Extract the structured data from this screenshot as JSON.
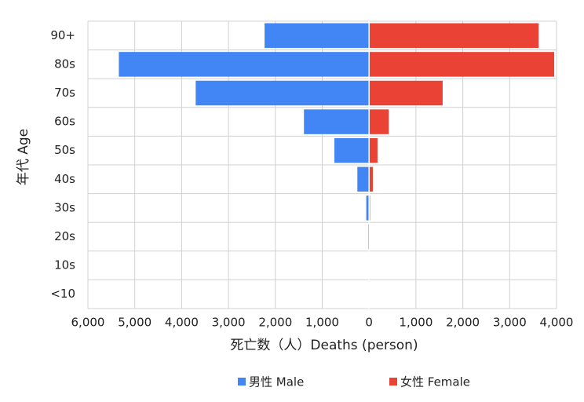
{
  "chart_data": {
    "type": "pyramid",
    "categories": [
      "90+",
      "80s",
      "70s",
      "60s",
      "50s",
      "40s",
      "30s",
      "20s",
      "10s",
      "<10"
    ],
    "series": [
      {
        "name": "男性 Male",
        "color": "#4285f4",
        "values": [
          -2230,
          -5340,
          -3700,
          -1390,
          -740,
          -250,
          -60,
          -20,
          0,
          0
        ]
      },
      {
        "name": "女性 Female",
        "color": "#ea4335",
        "values": [
          3620,
          3950,
          1570,
          420,
          180,
          80,
          20,
          3,
          0,
          0
        ]
      }
    ],
    "xlabel": "死亡数（人）Deaths (person)",
    "ylabel": "年代 Age",
    "xlim": [
      -6000,
      4000
    ],
    "xticks": [
      {
        "value": -6000,
        "label": "6,000"
      },
      {
        "value": -5000,
        "label": "5,000"
      },
      {
        "value": -4000,
        "label": "4,000"
      },
      {
        "value": -3000,
        "label": "3,000"
      },
      {
        "value": -2000,
        "label": "2,000"
      },
      {
        "value": -1000,
        "label": "1,000"
      },
      0,
      {
        "value": 1000,
        "label": "1,000"
      },
      {
        "value": 2000,
        "label": "2,000"
      },
      {
        "value": 3000,
        "label": "3,000"
      },
      {
        "value": 4000,
        "label": "4,000"
      }
    ],
    "grid": true,
    "legend": "bottom"
  }
}
